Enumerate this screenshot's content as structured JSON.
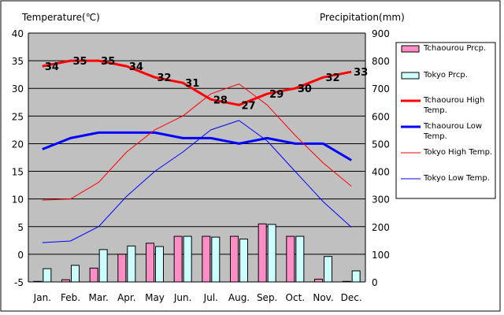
{
  "chart_data": {
    "type": "bar+line",
    "left_axis_title": "Temperature(℃)",
    "right_axis_title": "Precipitation(mm)",
    "categories": [
      "Jan.",
      "Feb.",
      "Mar.",
      "Apr.",
      "May",
      "Jun.",
      "Jul.",
      "Aug.",
      "Sep.",
      "Oct.",
      "Nov.",
      "Dec."
    ],
    "left_axis": {
      "min": -5,
      "max": 40,
      "ticks": [
        -5,
        0,
        5,
        10,
        15,
        20,
        25,
        30,
        35,
        40
      ]
    },
    "right_axis": {
      "min": 0,
      "max": 900,
      "ticks": [
        0,
        100,
        200,
        300,
        400,
        500,
        600,
        700,
        800,
        900
      ]
    },
    "bar_series": [
      {
        "name": "Tchaourou Prcp.",
        "color": "#ff8ec6",
        "values": [
          2,
          8,
          50,
          100,
          140,
          165,
          165,
          165,
          210,
          165,
          10,
          2
        ]
      },
      {
        "name": "Tokyo Prcp.",
        "color": "#ccffff",
        "values": [
          48,
          60,
          117,
          130,
          128,
          165,
          162,
          155,
          208,
          165,
          92,
          40
        ]
      }
    ],
    "line_series": [
      {
        "name": "Tchaourou High Temp.",
        "color": "#ff0000",
        "width": "thick",
        "values": [
          34,
          35,
          35,
          34,
          32,
          31,
          28,
          27,
          29,
          30,
          32,
          33
        ],
        "labels": [
          "34",
          "35",
          "35",
          "34",
          "32",
          "31",
          "28",
          "27",
          "29",
          "30",
          "32",
          "33"
        ]
      },
      {
        "name": "Tchaourou Low Temp.",
        "color": "#0000ff",
        "width": "thick",
        "values": [
          19,
          21,
          22,
          22,
          22,
          21,
          21,
          20,
          21,
          20,
          20,
          17
        ]
      },
      {
        "name": "Tokyo High Temp.",
        "color": "#ff0000",
        "width": "thin",
        "values": [
          9.8,
          10,
          13,
          18.5,
          22.5,
          25,
          29,
          30.8,
          27,
          21.5,
          16.5,
          12.3
        ]
      },
      {
        "name": "Tokyo Low Temp.",
        "color": "#0000ff",
        "width": "thin",
        "values": [
          2.1,
          2.4,
          5,
          10.5,
          15,
          18.5,
          22.5,
          24.2,
          20.5,
          15,
          9.5,
          4.9
        ]
      }
    ],
    "legend": [
      {
        "label": "Tchaourou Prcp.",
        "kind": "bar",
        "fill": "#ff8ec6"
      },
      {
        "label": "Tokyo Prcp.",
        "kind": "bar",
        "fill": "#ccffff"
      },
      {
        "label": "Tchaourou High Temp.",
        "kind": "line",
        "color": "#ff0000",
        "width": "thick"
      },
      {
        "label": "Tchaourou Low Temp.",
        "kind": "line",
        "color": "#0000ff",
        "width": "thick"
      },
      {
        "label": "Tokyo High Temp.",
        "kind": "line",
        "color": "#ff0000",
        "width": "thin"
      },
      {
        "label": "Tokyo Low Temp.",
        "kind": "line",
        "color": "#0000ff",
        "width": "thin"
      }
    ],
    "legend_position": "right",
    "plot_background": "#c0c0c0",
    "grid": true
  }
}
